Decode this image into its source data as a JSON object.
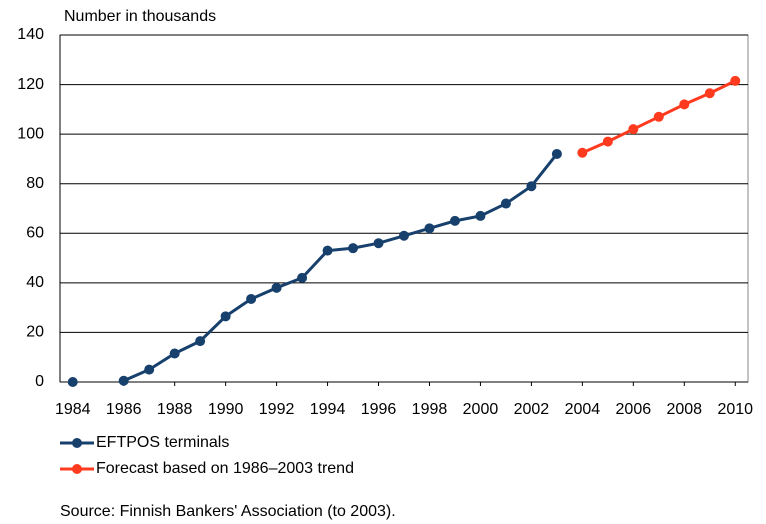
{
  "chart_data": {
    "type": "line",
    "y_axis_label": "Number in thousands",
    "source": "Source: Finnish Bankers' Association (to 2003).",
    "x": [
      1984,
      1985,
      1986,
      1987,
      1988,
      1989,
      1990,
      1991,
      1992,
      1993,
      1994,
      1995,
      1996,
      1997,
      1998,
      1999,
      2000,
      2001,
      2002,
      2003,
      2004,
      2005,
      2006,
      2007,
      2008,
      2009,
      2010
    ],
    "series": [
      {
        "name": "EFTPOS terminals",
        "color": "#17406d",
        "values": [
          0,
          null,
          0.5,
          5,
          11.5,
          16.5,
          26.5,
          33.5,
          38,
          42,
          53,
          54,
          56,
          59,
          62,
          65,
          67,
          72,
          79,
          92,
          null,
          null,
          null,
          null,
          null,
          null,
          null
        ]
      },
      {
        "name": "Forecast based on 1986–2003 trend",
        "color": "#ff3b1f",
        "values": [
          null,
          null,
          null,
          null,
          null,
          null,
          null,
          null,
          null,
          null,
          null,
          null,
          null,
          null,
          null,
          null,
          null,
          null,
          null,
          null,
          92.5,
          97,
          102,
          107,
          112,
          116.5,
          121.5
        ]
      }
    ],
    "xlim": [
      1983.5,
      2010.5
    ],
    "xticks": [
      1984,
      1986,
      1988,
      1990,
      1992,
      1994,
      1996,
      1998,
      2000,
      2002,
      2004,
      2006,
      2008,
      2010
    ],
    "ylim": [
      0,
      140
    ],
    "yticks": [
      0,
      20,
      40,
      60,
      80,
      100,
      120,
      140
    ],
    "grid": true
  }
}
